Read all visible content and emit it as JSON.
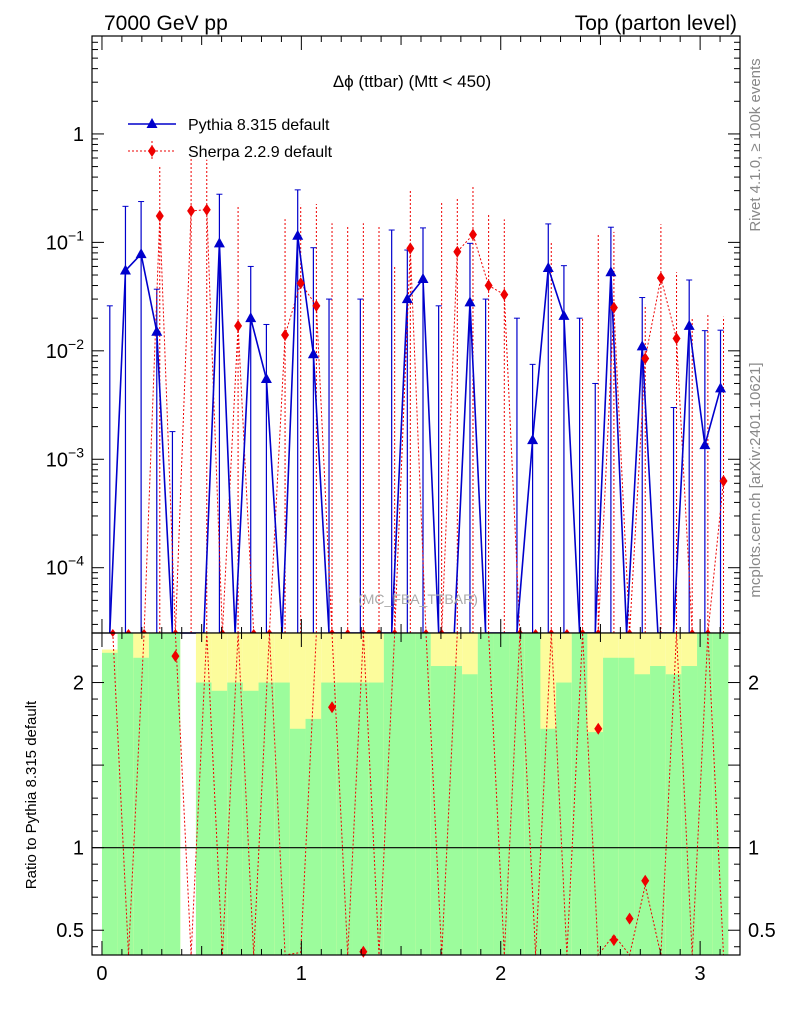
{
  "header": {
    "left": "7000 GeV pp",
    "right": "Top (parton level)"
  },
  "side_labels": {
    "rivet": "Rivet 4.1.0, ≥ 100k events",
    "mcplots": "mcplots.cern.ch [arXiv:2401.10621]"
  },
  "colors": {
    "pythia": "#0000cc",
    "sherpa": "#ee0000",
    "band_green": "#9cfc9c",
    "band_yellow": "#fcfc9c"
  },
  "chart_data": [
    {
      "type": "line",
      "title": "Δϕ (ttbar) (Mtt < 450)",
      "watermark": "(MC_FBA_TTBAR)",
      "xlabel": "",
      "ylabel": "",
      "yscale": "log",
      "xlim": [
        -0.05,
        3.2
      ],
      "ylim": [
        2.5e-05,
        8
      ],
      "x_ticks": [
        0,
        1,
        2,
        3
      ],
      "y_ticks": [
        {
          "value": 1,
          "label": "1"
        },
        {
          "value": 0.1,
          "label": "10",
          "exp": "−1"
        },
        {
          "value": 0.01,
          "label": "10",
          "exp": "−2"
        },
        {
          "value": 0.001,
          "label": "10",
          "exp": "−3"
        },
        {
          "value": 0.0001,
          "label": "10",
          "exp": "−4"
        }
      ],
      "legend": [
        {
          "name": "Pythia 8.315 default",
          "marker": "triangle",
          "style": "solid"
        },
        {
          "name": "Sherpa 2.2.9 default",
          "marker": "diamond",
          "style": "dotted"
        }
      ],
      "x": [
        0.0393,
        0.1178,
        0.1963,
        0.2749,
        0.3534,
        0.432,
        0.5105,
        0.589,
        0.6676,
        0.7461,
        0.8247,
        0.9032,
        0.9817,
        1.0603,
        1.1388,
        1.2174,
        1.2959,
        1.3744,
        1.453,
        1.5315,
        1.6101,
        1.6886,
        1.7671,
        1.8457,
        1.9242,
        2.0028,
        2.0813,
        2.1598,
        2.2384,
        2.3169,
        2.3955,
        2.474,
        2.5525,
        2.6311,
        2.7096,
        2.7882,
        2.8667,
        2.9452,
        3.0238,
        3.1023
      ],
      "series": [
        {
          "name": "Pythia 8.315 default",
          "values": [
            0,
            0.055,
            0.078,
            0.015,
            0,
            0,
            0,
            0.098,
            0,
            0.02,
            0.0055,
            0,
            0.115,
            0.0093,
            0,
            0,
            0,
            0,
            0,
            0.03,
            0.046,
            0,
            0,
            0.028,
            0,
            0,
            0,
            0.0015,
            0.058,
            0.021,
            0,
            0,
            0.053,
            0,
            0.011,
            0,
            0,
            0.017,
            0.00135,
            0.0045
          ],
          "err_up": [
            0.026,
            0.16,
            0.16,
            0.022,
            0.0018,
            0,
            0,
            0.18,
            0,
            0.04,
            0.012,
            0,
            0.19,
            0.08,
            0.03,
            0,
            0.03,
            0,
            0.13,
            0.055,
            0.09,
            0.026,
            0,
            0.07,
            0.03,
            0,
            0.02,
            0.006,
            0.09,
            0.04,
            0.02,
            0.005,
            0.085,
            0,
            0.02,
            0,
            0.003,
            0.028,
            0.014,
            0.011
          ]
        },
        {
          "name": "Sherpa 2.2.9 default",
          "values": [
            0,
            0,
            0,
            0.175,
            0,
            0.195,
            0.2,
            0,
            0.017,
            0,
            0,
            0.014,
            0.042,
            0.026,
            0,
            0,
            0,
            0,
            0,
            0.088,
            0,
            0,
            0.082,
            0.118,
            0.04,
            0.033,
            0,
            0,
            0,
            0,
            0,
            0,
            0.025,
            0,
            0.0085,
            0.047,
            0.013,
            0,
            0,
            0.00063
          ],
          "err_up": [
            0,
            0,
            0,
            0.33,
            0,
            0.41,
            0.38,
            0,
            0.2,
            0,
            0,
            0.15,
            0.18,
            0.2,
            0.15,
            0.14,
            0.15,
            0.14,
            0.06,
            0.21,
            0,
            0.24,
            0.18,
            0.22,
            0.14,
            0.13,
            0,
            0,
            0.1,
            0,
            0.02,
            0.12,
            0.1,
            0,
            0.018,
            0.1,
            0.04,
            0.02,
            0.022,
            0.02
          ]
        }
      ]
    },
    {
      "type": "line",
      "title": "",
      "ylabel": "Ratio to Pythia 8.315 default",
      "xlabel": "",
      "ylim": [
        0.35,
        2.3
      ],
      "xlim": [
        -0.05,
        3.2
      ],
      "x_ticks": [
        0,
        1,
        2,
        3
      ],
      "y_ticks": [
        {
          "value": 0.5,
          "label": "0.5"
        },
        {
          "value": 1,
          "label": "1"
        },
        {
          "value": 2,
          "label": "2"
        }
      ],
      "band_green_top": [
        2.2,
        2.3,
        2.3,
        2.3,
        2.3,
        null,
        2.3,
        2.3,
        2.3,
        2.3,
        2.3,
        2.3,
        2.3,
        2.3,
        2.3,
        2.3,
        2.3,
        2.3,
        2.3,
        2.3,
        2.3,
        2.3,
        2.3,
        2.3,
        2.3,
        2.3,
        2.3,
        2.3,
        2.3,
        2.3,
        2.3,
        2.3,
        2.3,
        2.3,
        2.3,
        2.3,
        2.3,
        2.3,
        2.3,
        2.3
      ],
      "band_yellow_top": [
        2.18,
        2.3,
        2.15,
        2.3,
        2.3,
        null,
        2.0,
        1.95,
        2.0,
        1.95,
        2.0,
        2.0,
        1.72,
        1.78,
        2.0,
        2.0,
        2.0,
        2.0,
        2.3,
        2.3,
        2.3,
        2.1,
        2.1,
        2.05,
        2.3,
        2.3,
        2.3,
        2.3,
        1.72,
        2.0,
        2.3,
        1.7,
        2.15,
        2.15,
        2.05,
        2.1,
        2.05,
        2.1,
        2.3,
        2.3
      ],
      "ratio_x": [
        0.3534,
        1.1388,
        1.2959,
        2.474,
        2.5525,
        2.6311,
        2.7096
      ],
      "ratio_values": [
        2.16,
        1.85,
        0.37,
        1.72,
        0.44,
        0.57,
        0.8
      ]
    }
  ]
}
